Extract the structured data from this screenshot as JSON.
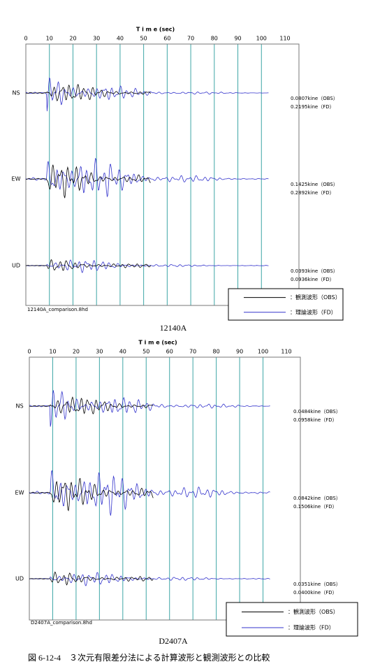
{
  "panels": [
    {
      "axis_title": "T i m e (sec)",
      "ticks": [
        0,
        10,
        20,
        30,
        40,
        50,
        60,
        70,
        80,
        90,
        100,
        110
      ],
      "channels": [
        {
          "label": "NS",
          "obs": "0.0807kine（OBS）",
          "fd": "0.2195kine（FD）"
        },
        {
          "label": "EW",
          "obs": "0.1425kine（OBS）",
          "fd": "0.2892kine（FD）"
        },
        {
          "label": "UD",
          "obs": "0.0393kine（OBS）",
          "fd": "0.0936kine（FD）"
        }
      ],
      "legend": {
        "obs": "：観測波形（OBS）",
        "fd": "：理論波形（FD）"
      },
      "file": "12140A_comparison.8hd",
      "caption": "12140A"
    },
    {
      "axis_title": "T i m e (sec)",
      "ticks": [
        0,
        10,
        20,
        30,
        40,
        50,
        60,
        70,
        80,
        90,
        100,
        110
      ],
      "channels": [
        {
          "label": "NS",
          "obs": "0.0484kine（OBS）",
          "fd": "0.0958kine（FD）"
        },
        {
          "label": "EW",
          "obs": "0.0842kine（OBS）",
          "fd": "0.1506kine（FD）"
        },
        {
          "label": "UD",
          "obs": "0.0351kine（OBS）",
          "fd": "0.0400kine（FD）"
        }
      ],
      "legend": {
        "obs": "：観測波形（OBS）",
        "fd": "：理論波形（FD）"
      },
      "file": "D2407A_comparison.8hd",
      "caption": "D2407A"
    }
  ],
  "figure_caption": "図 6-12-4　３次元有限差分法による計算波形と観測波形との比較"
}
